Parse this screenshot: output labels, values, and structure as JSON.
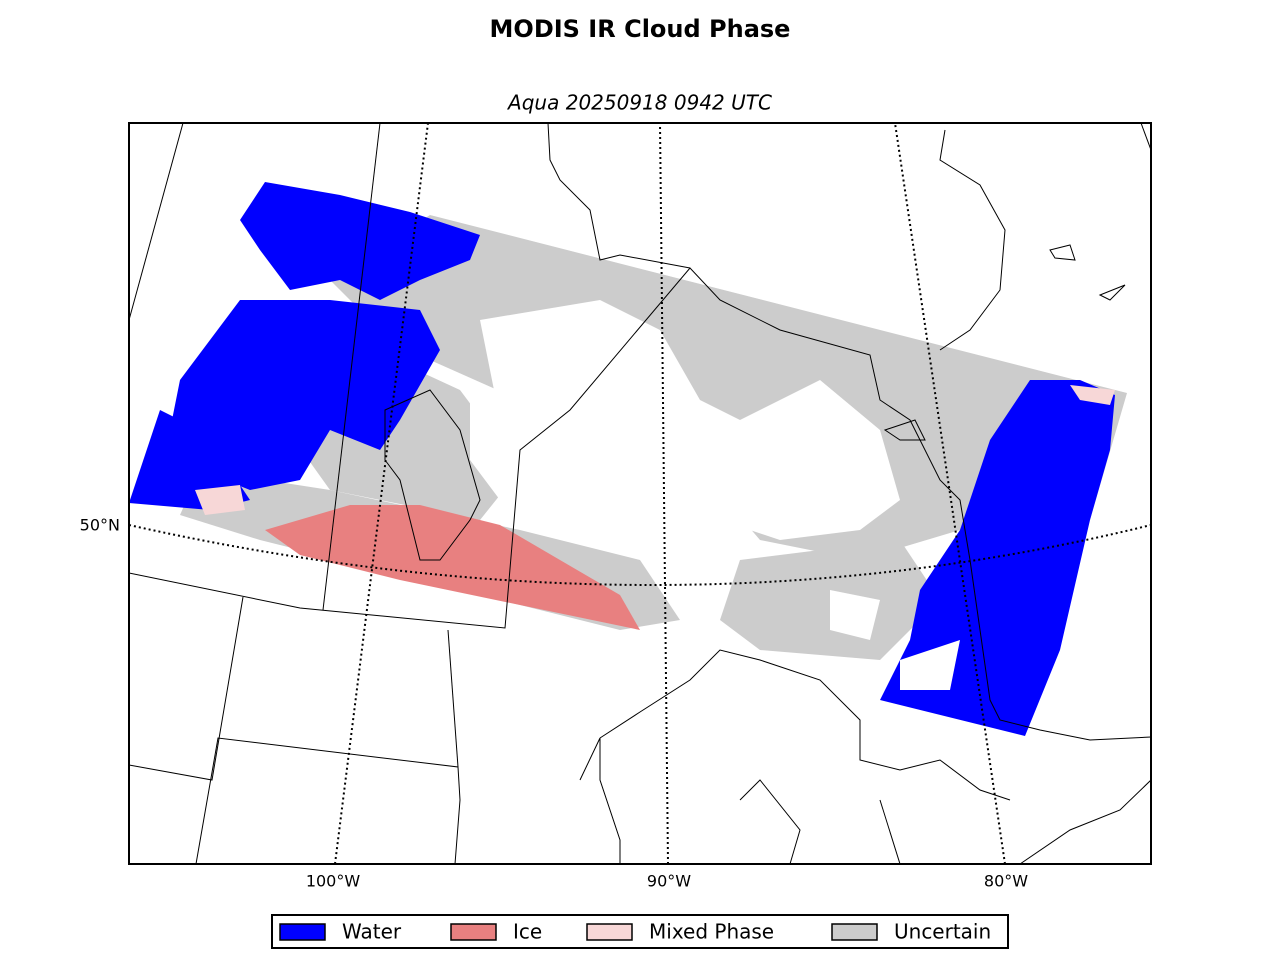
{
  "title": "MODIS IR Cloud Phase",
  "subtitle": "Aqua 20250918 0942 UTC",
  "lat_labels": [
    "50°N"
  ],
  "lon_labels": [
    "100°W",
    "90°W",
    "80°W"
  ],
  "legend": [
    {
      "label": "Water",
      "color": "#0000ff"
    },
    {
      "label": "Ice",
      "color": "#e88080"
    },
    {
      "label": "Mixed Phase",
      "color": "#f7d7d7"
    },
    {
      "label": "Uncertain",
      "color": "#cccccc"
    }
  ]
}
